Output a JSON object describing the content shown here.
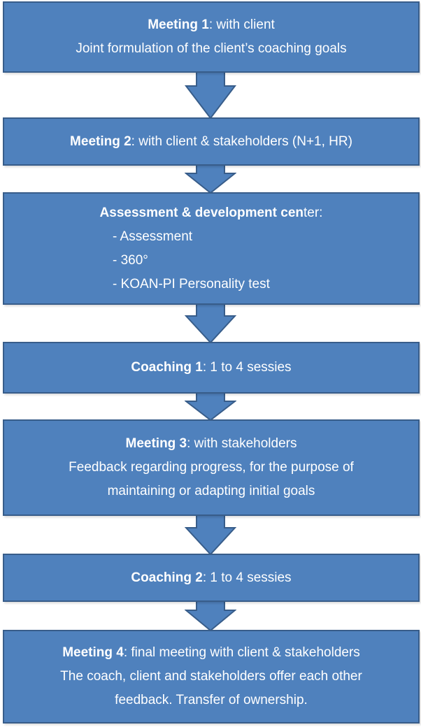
{
  "colors": {
    "box_fill": "#4f81bd",
    "box_border": "#385d8a",
    "text": "#ffffff"
  },
  "steps": [
    {
      "bold": "Meeting 1",
      "rest": ": with client",
      "line2": "Joint formulation  of the client’s coaching goals"
    },
    {
      "bold": "Meeting 2",
      "rest": ": with client & stakeholders (N+1, HR)"
    },
    {
      "bold": "Assessment & development cen",
      "rest": "ter:",
      "items": [
        "- Assessment",
        "- 360°",
        "- KOAN-PI Personality test"
      ]
    },
    {
      "bold": "Coaching 1",
      "rest": ": 1 to 4 sessies"
    },
    {
      "bold": "Meeting 3",
      "rest": ": with stakeholders",
      "line2": "Feedback regarding progress, for the purpose of",
      "line3": "maintaining or adapting initial goals"
    },
    {
      "bold": "Coaching 2",
      "rest": ": 1 to 4 sessies"
    },
    {
      "bold": "Meeting 4",
      "rest": ": final meeting with client & stakeholders",
      "line2": "The coach, client and stakeholders offer each other",
      "line3": "feedback. Transfer of ownership."
    }
  ]
}
